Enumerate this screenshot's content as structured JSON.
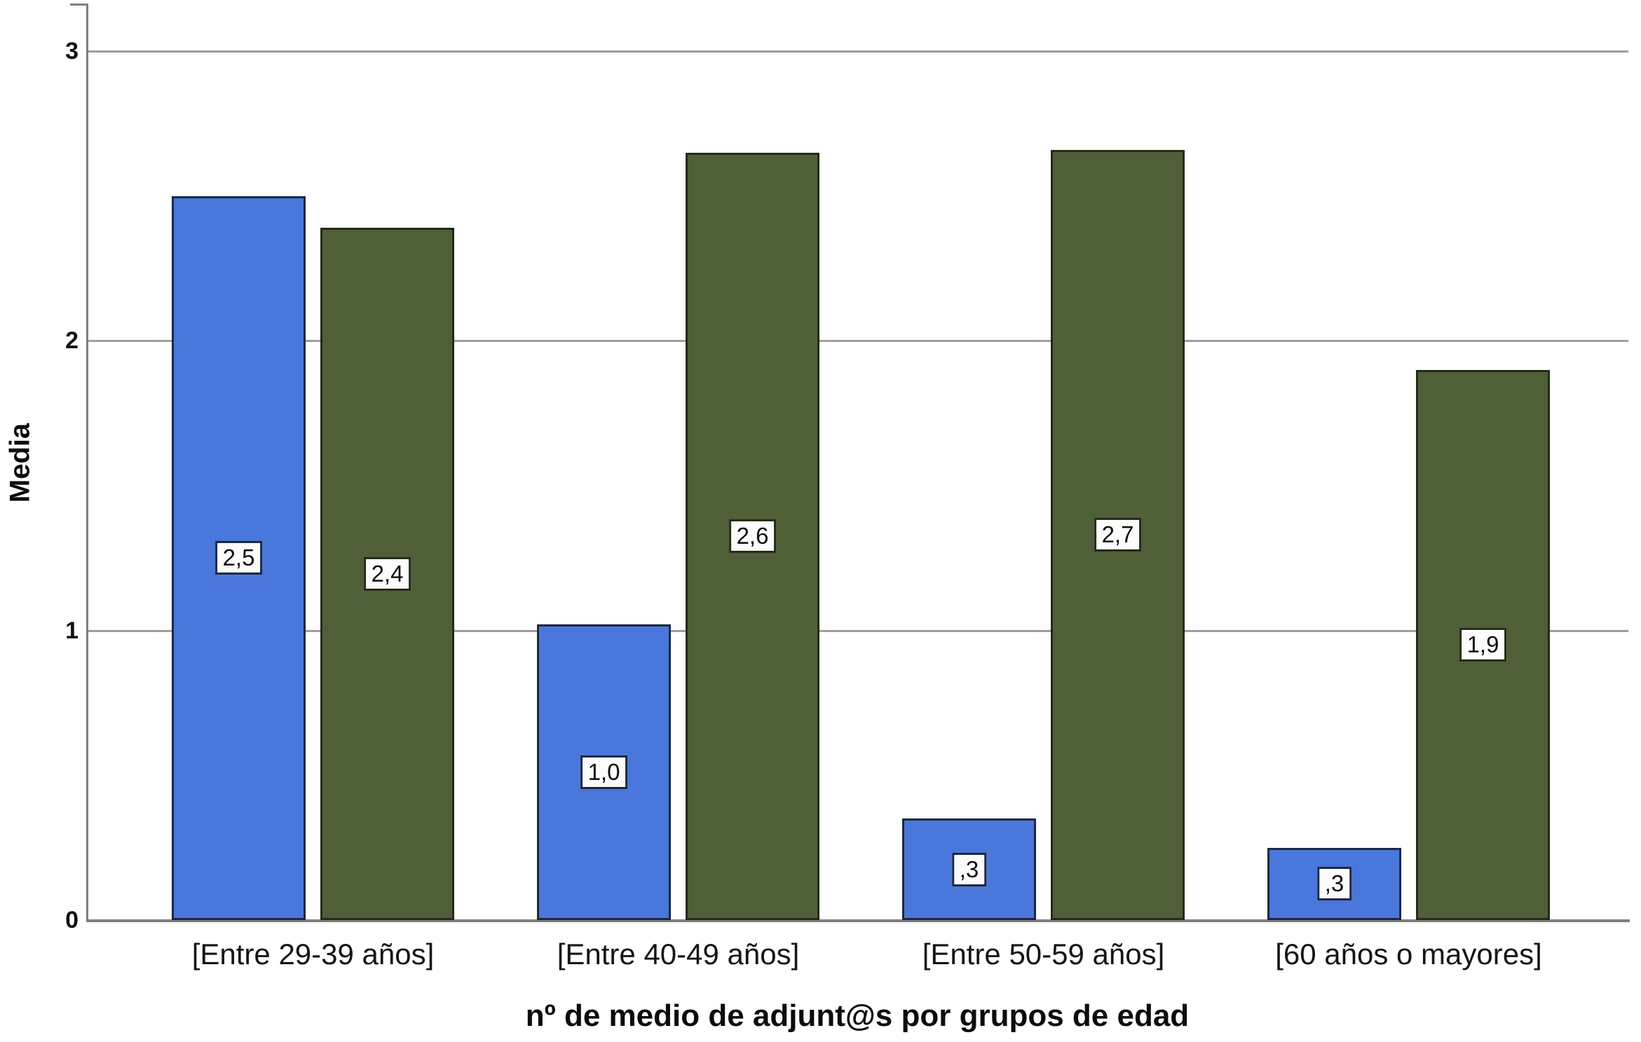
{
  "figure": {
    "background": "#ffffff",
    "text_color": "#0d0d0d",
    "gridline_color": "#9e9e9e",
    "axis_color": "#7f7f7f"
  },
  "chart_data": {
    "type": "bar",
    "title": "",
    "xlabel": "nº de medio de adjunt@s por grupos de edad",
    "ylabel": "Media",
    "categories": [
      "[Entre 29-39 años]",
      "[Entre 40-49 años]",
      "[Entre 50-59 años]",
      "[60 años o mayores]"
    ],
    "series": [
      {
        "name": "blue",
        "color": "#4a77db",
        "border": "#1b2940",
        "values": [
          2.5,
          1.0,
          0.3,
          0.3
        ],
        "value_labels": [
          "2,5",
          "1,0",
          ",3",
          ",3"
        ],
        "values_measured": [
          2.5,
          1.02,
          0.35,
          0.25
        ]
      },
      {
        "name": "green",
        "color": "#4f5f38",
        "border": "#242b19",
        "values": [
          2.4,
          2.6,
          2.7,
          1.9
        ],
        "value_labels": [
          "2,4",
          "2,6",
          "2,7",
          "1,9"
        ],
        "values_measured": [
          2.39,
          2.65,
          2.66,
          1.9
        ]
      }
    ],
    "ylim": [
      0,
      3
    ],
    "yticks": [
      "0",
      "1",
      "2",
      "3"
    ],
    "grid": true,
    "legend": false,
    "value_label_box": {
      "bg": "#fcfcfc",
      "text_color": "#0d0d0d"
    }
  }
}
